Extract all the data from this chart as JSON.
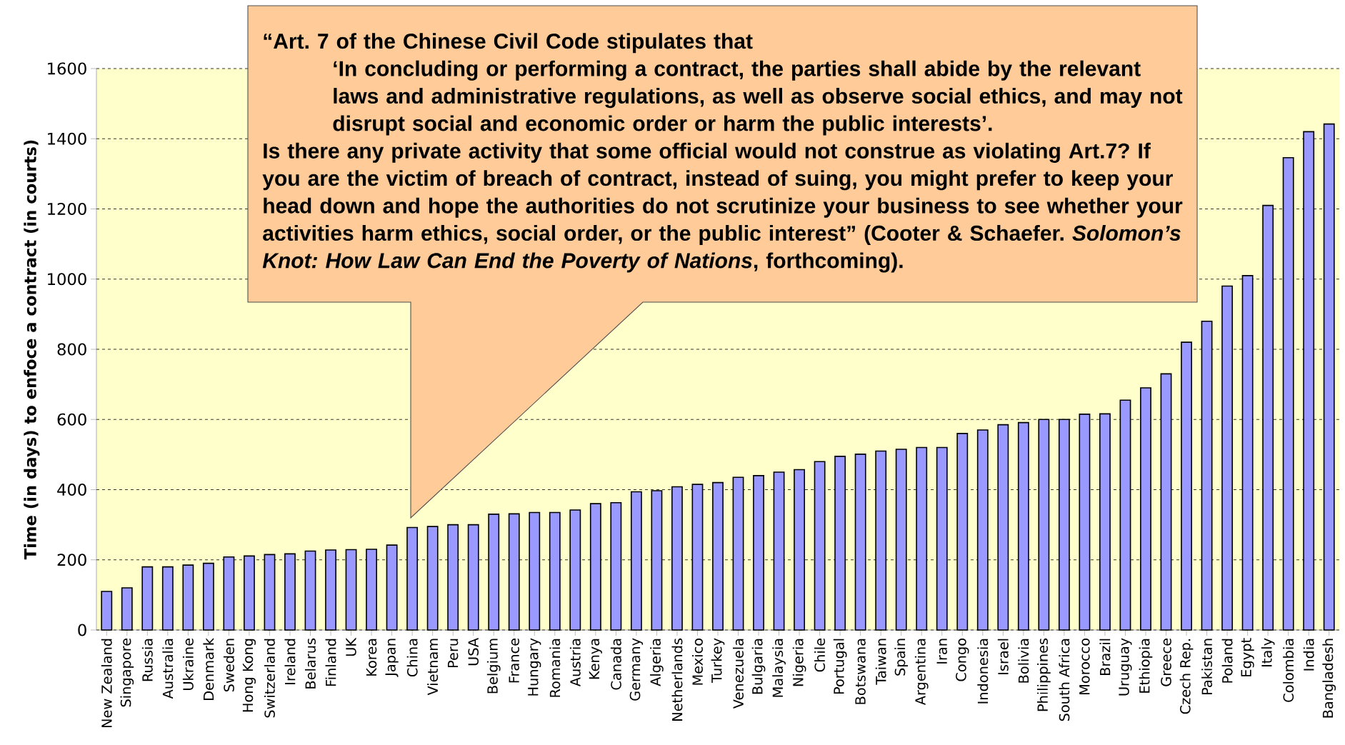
{
  "chart_data": {
    "type": "bar",
    "ylabel": "Time (in days) to enfoce a contract (in courts)",
    "categories": [
      "New Zealand",
      "Singapore",
      "Russia",
      "Australia",
      "Ukraine",
      "Denmark",
      "Sweden",
      "Hong Kong",
      "Switzerland",
      "Ireland",
      "Belarus",
      "Finland",
      "UK",
      "Korea",
      "Japan",
      "China",
      "Vietnam",
      "Peru",
      "USA",
      "Belgium",
      "France",
      "Hungary",
      "Romania",
      "Austria",
      "Kenya",
      "Canada",
      "Germany",
      "Algeria",
      "Netherlands",
      "Mexico",
      "Turkey",
      "Venezuela",
      "Bulgaria",
      "Malaysia",
      "Nigeria",
      "Chile",
      "Portugal",
      "Botswana",
      "Taiwan",
      "Spain",
      "Argentina",
      "Iran",
      "Congo",
      "Indonesia",
      "Israel",
      "Bolivia",
      "Philippines",
      "South Africa",
      "Morocco",
      "Brazil",
      "Uruguay",
      "Ethiopia",
      "Greece",
      "Czech Rep.",
      "Pakistan",
      "Poland",
      "Egypt",
      "Italy",
      "Colombia",
      "India",
      "Bangladesh"
    ],
    "values": [
      110,
      120,
      180,
      180,
      185,
      190,
      208,
      211,
      215,
      217,
      225,
      228,
      229,
      230,
      242,
      292,
      295,
      300,
      300,
      330,
      331,
      335,
      335,
      342,
      360,
      363,
      394,
      397,
      408,
      415,
      420,
      435,
      440,
      450,
      457,
      480,
      495,
      501,
      510,
      515,
      520,
      520,
      560,
      570,
      585,
      591,
      600,
      600,
      615,
      616,
      655,
      690,
      730,
      820,
      880,
      980,
      1010,
      1210,
      1346,
      1420,
      1442
    ],
    "color": "#9999ff",
    "ylim": [
      0,
      1600
    ],
    "yticks": [
      0,
      200,
      400,
      600,
      800,
      1000,
      1200,
      1400,
      1600
    ],
    "grid": "y",
    "annotations": [
      "“Art. 7 of the Chinese Civil Code stipulates that",
      "‘In concluding or performing a contract, the parties shall abide by the relevant laws and administrative regulations, as well as observe social ethics, and may not disrupt social and economic order or harm the public interests’.",
      "Is there any private activity that some official would not construe as violating Art.7? If you are the victim of breach of contract, instead of suing, you might prefer to keep your head down and hope the authorities do not scrutinize your business to see whether your activities harm ethics, social order, or the public interest” (Cooter & Schaefer. *Solomon’s Knot: How Law Can End the Poverty of Nations*, forthcoming)."
    ]
  }
}
